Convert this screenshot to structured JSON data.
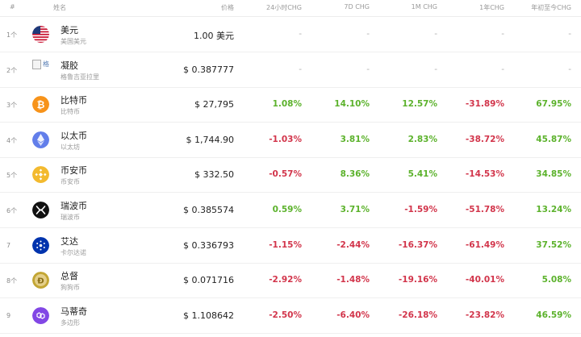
{
  "header": {
    "rank": "#",
    "name": "姓名",
    "price": "价格",
    "chg_24h": "24小时CHG",
    "chg_7d": "7D CHG",
    "chg_1m": "1M CHG",
    "chg_1y": "1年CHG",
    "chg_ytd": "年初至今CHG"
  },
  "rows": [
    {
      "rank": "1个",
      "name": "美元",
      "sub": "美国美元",
      "price": "1.00 美元",
      "c24": "-",
      "c7d": "-",
      "c1m": "-",
      "c1y": "-",
      "cytd": "-",
      "icon": "us-flag-icon"
    },
    {
      "rank": "2个",
      "name": "凝胶",
      "sub": "格鲁吉亚拉里",
      "price": "$ 0.387777",
      "c24": "-",
      "c7d": "-",
      "c1m": "-",
      "c1y": "-",
      "cytd": "-",
      "icon": "broken-image-icon",
      "icon_alt": "格"
    },
    {
      "rank": "3个",
      "name": "比特币",
      "sub": "比特币",
      "price": "$ 27,795",
      "c24": "1.08%",
      "c7d": "14.10%",
      "c1m": "12.57%",
      "c1y": "-31.89%",
      "cytd": "67.95%",
      "icon": "bitcoin-icon"
    },
    {
      "rank": "4个",
      "name": "以太币",
      "sub": "以太坊",
      "price": "$ 1,744.90",
      "c24": "-1.03%",
      "c7d": "3.81%",
      "c1m": "2.83%",
      "c1y": "-38.72%",
      "cytd": "45.87%",
      "icon": "ethereum-icon"
    },
    {
      "rank": "5个",
      "name": "币安币",
      "sub": "币安币",
      "price": "$ 332.50",
      "c24": "-0.57%",
      "c7d": "8.36%",
      "c1m": "5.41%",
      "c1y": "-14.53%",
      "cytd": "34.85%",
      "icon": "binance-icon"
    },
    {
      "rank": "6个",
      "name": "瑞波币",
      "sub": "瑞波币",
      "price": "$ 0.385574",
      "c24": "0.59%",
      "c7d": "3.71%",
      "c1m": "-1.59%",
      "c1y": "-51.78%",
      "cytd": "13.24%",
      "icon": "xrp-icon"
    },
    {
      "rank": "7",
      "name": "艾达",
      "sub": "卡尔达诺",
      "price": "$ 0.336793",
      "c24": "-1.15%",
      "c7d": "-2.44%",
      "c1m": "-16.37%",
      "c1y": "-61.49%",
      "cytd": "37.52%",
      "icon": "cardano-icon"
    },
    {
      "rank": "8个",
      "name": "总督",
      "sub": "狗狗币",
      "price": "$ 0.071716",
      "c24": "-2.92%",
      "c7d": "-1.48%",
      "c1m": "-19.16%",
      "c1y": "-40.01%",
      "cytd": "5.08%",
      "icon": "dogecoin-icon"
    },
    {
      "rank": "9",
      "name": "马蒂奇",
      "sub": "多边形",
      "price": "$ 1.108642",
      "c24": "-2.50%",
      "c7d": "-6.40%",
      "c1m": "-26.18%",
      "c1y": "-23.82%",
      "cytd": "46.59%",
      "icon": "polygon-icon"
    }
  ],
  "colors": {
    "positive": "#5cb22c",
    "negative": "#d2354b"
  }
}
